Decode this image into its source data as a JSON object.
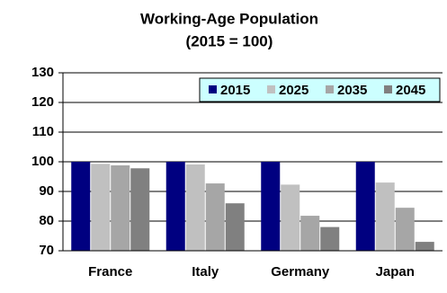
{
  "chart_data": {
    "type": "bar",
    "title": "Working-Age Population",
    "subtitle": "(2015 = 100)",
    "categories": [
      "France",
      "Italy",
      "Germany",
      "Japan"
    ],
    "series": [
      {
        "name": "2015",
        "color": "#000080",
        "values": [
          100,
          100,
          100,
          100
        ]
      },
      {
        "name": "2025",
        "color": "#c0c0c0",
        "values": [
          99.3,
          99.1,
          92.3,
          93.0
        ]
      },
      {
        "name": "2035",
        "color": "#a6a6a6",
        "values": [
          98.8,
          92.7,
          81.8,
          84.5
        ]
      },
      {
        "name": "2045",
        "color": "#808080",
        "values": [
          97.8,
          86.0,
          78.0,
          73.0
        ]
      }
    ],
    "ylim": [
      70,
      130
    ],
    "yticks": [
      70,
      80,
      90,
      100,
      110,
      120,
      130
    ],
    "grid": true,
    "legend": "top-right"
  }
}
